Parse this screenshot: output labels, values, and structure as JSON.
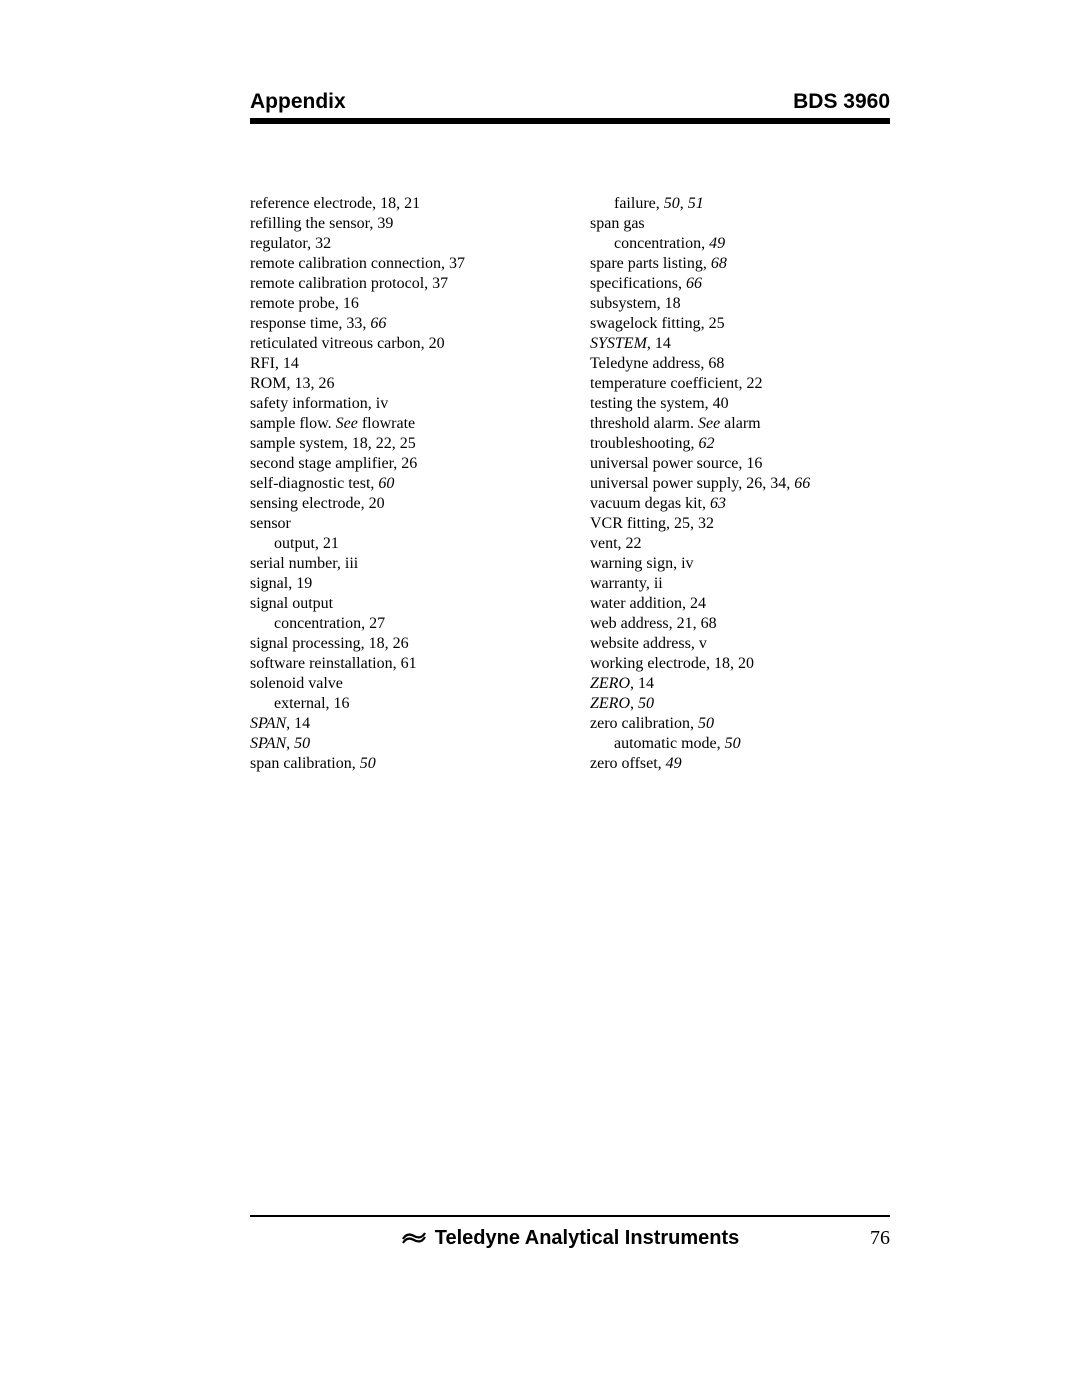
{
  "header": {
    "left": "Appendix",
    "right": "BDS 3960"
  },
  "footer": {
    "company": "Teledyne Analytical Instruments",
    "page_number": "76"
  },
  "index": {
    "col1": [
      {
        "t": "reference electrode, 18, 21"
      },
      {
        "t": "refilling the sensor, 39"
      },
      {
        "t": "regulator, 32"
      },
      {
        "t": "remote calibration connection, 37"
      },
      {
        "t": "remote calibration protocol, 37"
      },
      {
        "t": "remote probe, 16"
      },
      {
        "t": "response time, 33, ",
        "tail": "66",
        "tail_italic": true
      },
      {
        "t": "reticulated vitreous carbon, 20"
      },
      {
        "t": "RFI, 14"
      },
      {
        "t": "ROM, 13, 26"
      },
      {
        "t": "safety information, iv"
      },
      {
        "t": "sample flow. ",
        "mid": "See",
        "mid_italic": true,
        "after": " flowrate"
      },
      {
        "t": "sample system, 18, 22, 25"
      },
      {
        "t": "second stage amplifier, 26"
      },
      {
        "t": "self-diagnostic test, ",
        "tail": "60",
        "tail_italic": true
      },
      {
        "t": "sensing electrode, 20"
      },
      {
        "t": "sensor"
      },
      {
        "t": "output, 21",
        "sub": true
      },
      {
        "t": "serial number, iii"
      },
      {
        "t": "signal, 19"
      },
      {
        "t": "signal output"
      },
      {
        "t": "concentration, 27",
        "sub": true
      },
      {
        "t": "signal processing, 18, 26"
      },
      {
        "t": "software reinstallation, 61"
      },
      {
        "t": "solenoid valve"
      },
      {
        "t": "external, 16",
        "sub": true
      },
      {
        "pre": "SPAN",
        "pre_italic": true,
        "t": ", 14"
      },
      {
        "pre": "SPAN",
        "pre_italic": true,
        "t": ", ",
        "tail": "50",
        "tail_italic": true
      },
      {
        "t": "span calibration, ",
        "tail": "50",
        "tail_italic": true
      }
    ],
    "col2": [
      {
        "t": "failure, ",
        "tail": "50",
        "tail_italic": true,
        "after": ", ",
        "tail2": "51",
        "tail2_italic": true,
        "sub": true
      },
      {
        "t": "span gas"
      },
      {
        "t": "concentration, ",
        "tail": "49",
        "tail_italic": true,
        "sub": true
      },
      {
        "t": "spare parts listing, ",
        "tail": "68",
        "tail_italic": true
      },
      {
        "t": "specifications, ",
        "tail": "66",
        "tail_italic": true
      },
      {
        "t": "subsystem, 18"
      },
      {
        "t": "swagelock fitting, 25"
      },
      {
        "pre": "SYSTEM",
        "pre_italic": true,
        "t": ", 14"
      },
      {
        "t": "Teledyne address, 68"
      },
      {
        "t": "temperature coefficient, 22"
      },
      {
        "t": "testing the system, 40"
      },
      {
        "t": "threshold alarm. ",
        "mid": "See",
        "mid_italic": true,
        "after": " alarm"
      },
      {
        "t": "troubleshooting, ",
        "tail": "62",
        "tail_italic": true
      },
      {
        "t": "universal power source, 16"
      },
      {
        "t": "universal power supply, 26, 34, ",
        "tail": "66",
        "tail_italic": true
      },
      {
        "t": "vacuum degas kit, ",
        "tail": "63",
        "tail_italic": true
      },
      {
        "t": "VCR fitting, 25, 32"
      },
      {
        "t": "vent, 22"
      },
      {
        "t": "warning sign, iv"
      },
      {
        "t": "warranty, ii"
      },
      {
        "t": "water addition, 24"
      },
      {
        "t": "web address, 21, 68"
      },
      {
        "t": "website address, v"
      },
      {
        "t": "working electrode, 18, 20"
      },
      {
        "pre": "ZERO",
        "pre_italic": true,
        "t": ", 14"
      },
      {
        "pre": "ZERO",
        "pre_italic": true,
        "t": ", ",
        "tail": "50",
        "tail_italic": true
      },
      {
        "t": "zero calibration, ",
        "tail": "50",
        "tail_italic": true
      },
      {
        "t": "automatic mode, ",
        "tail": "50",
        "tail_italic": true,
        "sub": true
      },
      {
        "t": "zero offset, ",
        "tail": "49",
        "tail_italic": true
      }
    ]
  }
}
